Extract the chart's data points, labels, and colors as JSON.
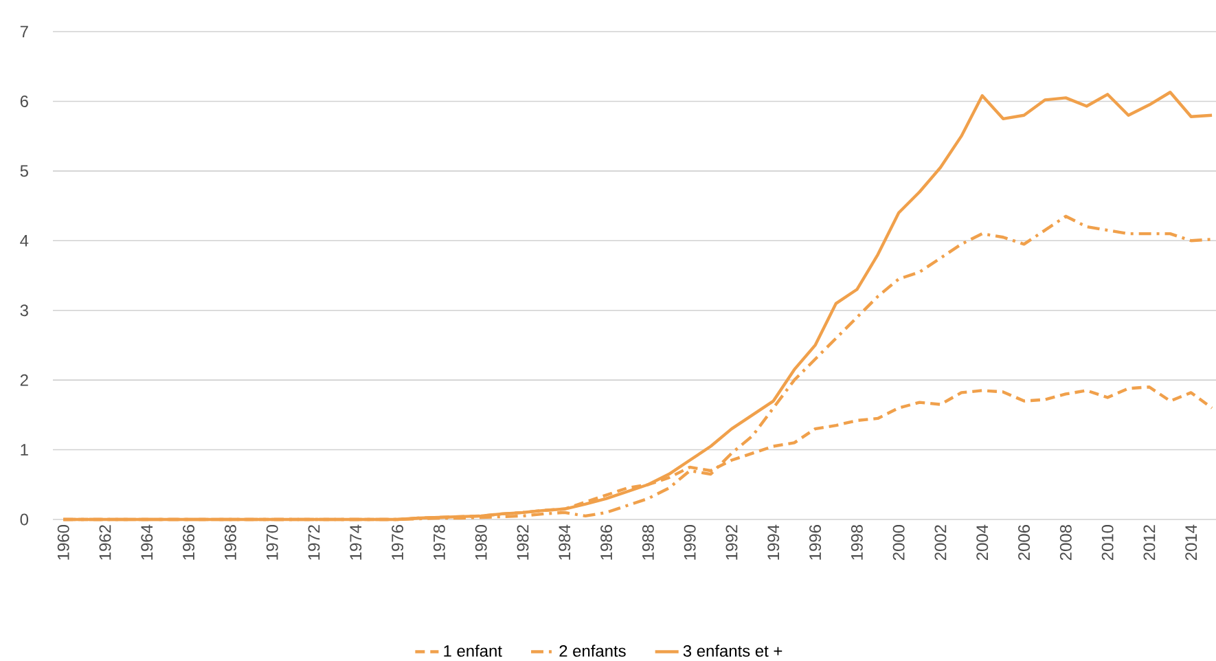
{
  "chart_data": {
    "type": "line",
    "x": [
      1960,
      1961,
      1962,
      1963,
      1964,
      1965,
      1966,
      1967,
      1968,
      1969,
      1970,
      1971,
      1972,
      1973,
      1974,
      1975,
      1976,
      1977,
      1978,
      1979,
      1980,
      1981,
      1982,
      1983,
      1984,
      1985,
      1986,
      1987,
      1988,
      1989,
      1990,
      1991,
      1992,
      1993,
      1994,
      1995,
      1996,
      1997,
      1998,
      1999,
      2000,
      2001,
      2002,
      2003,
      2004,
      2005,
      2006,
      2007,
      2008,
      2009,
      2010,
      2011,
      2012,
      2013,
      2014,
      2015
    ],
    "series": [
      {
        "name": "1 enfant",
        "color": "#f0a04b",
        "line_style": "dashed",
        "values": [
          0,
          0,
          0,
          0,
          0,
          0,
          0,
          0,
          0,
          0,
          0,
          0,
          0,
          0,
          0,
          0,
          0,
          0.02,
          0.03,
          0.04,
          0.05,
          0.08,
          0.1,
          0.13,
          0.15,
          0.25,
          0.35,
          0.45,
          0.5,
          0.6,
          0.75,
          0.7,
          0.85,
          0.95,
          1.05,
          1.1,
          1.3,
          1.35,
          1.42,
          1.45,
          1.6,
          1.68,
          1.65,
          1.82,
          1.85,
          1.83,
          1.7,
          1.72,
          1.8,
          1.85,
          1.75,
          1.88,
          1.9,
          1.7,
          1.82,
          1.6
        ]
      },
      {
        "name": "2 enfants",
        "color": "#f0a04b",
        "line_style": "dashdot",
        "values": [
          0,
          0,
          0,
          0,
          0,
          0,
          0,
          0,
          0,
          0,
          0,
          0,
          0,
          0,
          0,
          0,
          0,
          0.01,
          0.02,
          0.02,
          0.03,
          0.04,
          0.05,
          0.08,
          0.1,
          0.05,
          0.1,
          0.2,
          0.3,
          0.45,
          0.7,
          0.65,
          0.95,
          1.2,
          1.6,
          2.0,
          2.3,
          2.6,
          2.9,
          3.2,
          3.45,
          3.55,
          3.75,
          3.95,
          4.1,
          4.05,
          3.95,
          4.15,
          4.35,
          4.2,
          4.15,
          4.1,
          4.1,
          4.1,
          4.0,
          4.02
        ]
      },
      {
        "name": "3 enfants et +",
        "color": "#f0a04b",
        "line_style": "solid",
        "values": [
          0,
          0,
          0,
          0,
          0,
          0,
          0,
          0,
          0,
          0,
          0,
          0,
          0,
          0,
          0,
          0,
          0,
          0.02,
          0.03,
          0.04,
          0.05,
          0.08,
          0.1,
          0.13,
          0.15,
          0.22,
          0.3,
          0.4,
          0.5,
          0.65,
          0.85,
          1.05,
          1.3,
          1.5,
          1.7,
          2.15,
          2.5,
          3.1,
          3.3,
          3.8,
          4.4,
          4.7,
          5.05,
          5.5,
          6.08,
          5.75,
          5.8,
          6.02,
          6.05,
          5.93,
          6.1,
          5.8,
          5.95,
          6.13,
          5.78,
          5.8
        ]
      }
    ],
    "xlim": [
      1959.5,
      2015.2
    ],
    "xticks": [
      1960,
      1962,
      1964,
      1966,
      1968,
      1970,
      1972,
      1974,
      1976,
      1978,
      1980,
      1982,
      1984,
      1986,
      1988,
      1990,
      1992,
      1994,
      1996,
      1998,
      2000,
      2002,
      2004,
      2006,
      2008,
      2010,
      2012,
      2014
    ],
    "ylim": [
      0,
      7
    ],
    "yticks": [
      0,
      1,
      2,
      3,
      4,
      5,
      6,
      7
    ],
    "grid": "y",
    "legend": "bottom"
  }
}
